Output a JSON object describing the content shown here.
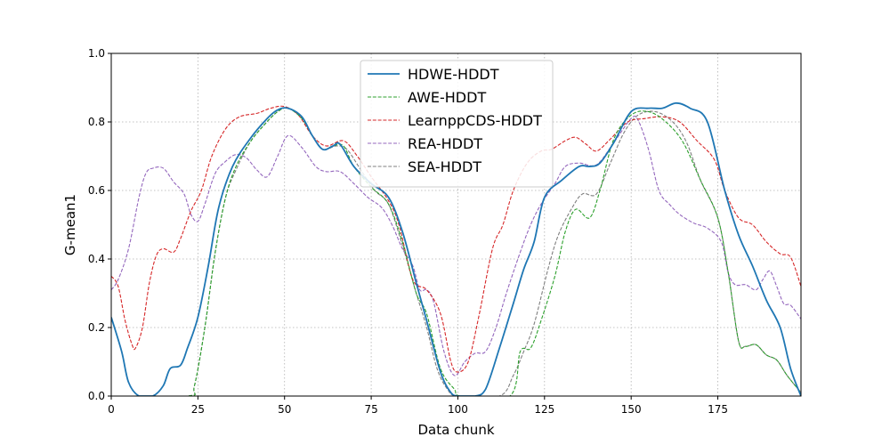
{
  "chart_data": {
    "type": "line",
    "title": "",
    "xlabel": "Data chunk",
    "ylabel": "G-mean1",
    "xlim": [
      0,
      199
    ],
    "ylim": [
      0,
      1
    ],
    "xticks": [
      0,
      25,
      50,
      75,
      100,
      125,
      150,
      175
    ],
    "yticks": [
      0.0,
      0.2,
      0.4,
      0.6,
      0.8,
      1.0
    ],
    "xtick_labels": [
      "0",
      "25",
      "50",
      "75",
      "100",
      "125",
      "150",
      "175"
    ],
    "ytick_labels": [
      "0.0",
      "0.2",
      "0.4",
      "0.6",
      "0.8",
      "1.0"
    ],
    "grid": true,
    "legend_position": "top-center",
    "series": [
      {
        "name": "HDWE-HDDT",
        "color": "#1f77b4",
        "style": "solid",
        "points": [
          [
            0,
            0.23
          ],
          [
            3,
            0.13
          ],
          [
            5,
            0.04
          ],
          [
            8,
            0.0
          ],
          [
            12,
            0.0
          ],
          [
            15,
            0.03
          ],
          [
            17,
            0.08
          ],
          [
            20,
            0.09
          ],
          [
            22,
            0.14
          ],
          [
            25,
            0.23
          ],
          [
            28,
            0.38
          ],
          [
            31,
            0.55
          ],
          [
            35,
            0.67
          ],
          [
            40,
            0.75
          ],
          [
            45,
            0.81
          ],
          [
            48,
            0.835
          ],
          [
            51,
            0.84
          ],
          [
            55,
            0.815
          ],
          [
            58,
            0.76
          ],
          [
            61,
            0.72
          ],
          [
            64,
            0.73
          ],
          [
            66,
            0.735
          ],
          [
            70,
            0.67
          ],
          [
            75,
            0.62
          ],
          [
            80,
            0.58
          ],
          [
            84,
            0.48
          ],
          [
            88,
            0.33
          ],
          [
            91,
            0.22
          ],
          [
            95,
            0.07
          ],
          [
            98,
            0.01
          ],
          [
            100,
            0.0
          ],
          [
            105,
            0.0
          ],
          [
            108,
            0.02
          ],
          [
            112,
            0.14
          ],
          [
            116,
            0.27
          ],
          [
            119,
            0.37
          ],
          [
            122,
            0.45
          ],
          [
            125,
            0.58
          ],
          [
            130,
            0.63
          ],
          [
            135,
            0.67
          ],
          [
            138,
            0.67
          ],
          [
            141,
            0.68
          ],
          [
            145,
            0.74
          ],
          [
            150,
            0.83
          ],
          [
            155,
            0.84
          ],
          [
            159,
            0.84
          ],
          [
            163,
            0.855
          ],
          [
            167,
            0.84
          ],
          [
            172,
            0.8
          ],
          [
            177,
            0.6
          ],
          [
            181,
            0.47
          ],
          [
            185,
            0.38
          ],
          [
            189,
            0.28
          ],
          [
            193,
            0.2
          ],
          [
            196,
            0.08
          ],
          [
            199,
            0.0
          ]
        ]
      },
      {
        "name": "AWE-HDDT",
        "color": "#2ca02c",
        "style": "dashed",
        "points": [
          [
            0,
            0.0
          ],
          [
            22,
            0.0
          ],
          [
            24,
            0.03
          ],
          [
            27,
            0.2
          ],
          [
            30,
            0.42
          ],
          [
            33,
            0.58
          ],
          [
            36,
            0.67
          ],
          [
            40,
            0.74
          ],
          [
            44,
            0.79
          ],
          [
            48,
            0.83
          ],
          [
            51,
            0.84
          ],
          [
            55,
            0.81
          ],
          [
            58,
            0.76
          ],
          [
            61,
            0.72
          ],
          [
            64,
            0.73
          ],
          [
            67,
            0.73
          ],
          [
            70,
            0.67
          ],
          [
            75,
            0.61
          ],
          [
            80,
            0.56
          ],
          [
            84,
            0.45
          ],
          [
            88,
            0.3
          ],
          [
            91,
            0.24
          ],
          [
            95,
            0.08
          ],
          [
            99,
            0.02
          ],
          [
            101,
            0.0
          ],
          [
            115,
            0.0
          ],
          [
            118,
            0.13
          ],
          [
            121,
            0.14
          ],
          [
            124,
            0.22
          ],
          [
            128,
            0.35
          ],
          [
            131,
            0.48
          ],
          [
            134,
            0.545
          ],
          [
            138,
            0.52
          ],
          [
            141,
            0.6
          ],
          [
            145,
            0.75
          ],
          [
            150,
            0.82
          ],
          [
            155,
            0.83
          ],
          [
            160,
            0.8
          ],
          [
            165,
            0.74
          ],
          [
            170,
            0.63
          ],
          [
            175,
            0.52
          ],
          [
            178,
            0.36
          ],
          [
            181,
            0.16
          ],
          [
            183,
            0.145
          ],
          [
            186,
            0.15
          ],
          [
            189,
            0.12
          ],
          [
            192,
            0.105
          ],
          [
            195,
            0.06
          ],
          [
            199,
            0.01
          ]
        ]
      },
      {
        "name": "LearnppCDS-HDDT",
        "color": "#d62728",
        "style": "dashed",
        "points": [
          [
            0,
            0.35
          ],
          [
            2,
            0.32
          ],
          [
            4,
            0.22
          ],
          [
            6,
            0.15
          ],
          [
            7,
            0.14
          ],
          [
            9,
            0.2
          ],
          [
            11,
            0.33
          ],
          [
            13,
            0.41
          ],
          [
            15,
            0.43
          ],
          [
            18,
            0.42
          ],
          [
            20,
            0.46
          ],
          [
            23,
            0.54
          ],
          [
            26,
            0.6
          ],
          [
            29,
            0.7
          ],
          [
            33,
            0.78
          ],
          [
            37,
            0.815
          ],
          [
            42,
            0.825
          ],
          [
            46,
            0.84
          ],
          [
            50,
            0.845
          ],
          [
            54,
            0.82
          ],
          [
            58,
            0.76
          ],
          [
            62,
            0.73
          ],
          [
            67,
            0.745
          ],
          [
            71,
            0.7
          ],
          [
            75,
            0.64
          ],
          [
            80,
            0.57
          ],
          [
            83,
            0.5
          ],
          [
            87,
            0.34
          ],
          [
            91,
            0.31
          ],
          [
            95,
            0.24
          ],
          [
            98,
            0.1
          ],
          [
            100,
            0.07
          ],
          [
            103,
            0.1
          ],
          [
            106,
            0.23
          ],
          [
            110,
            0.43
          ],
          [
            113,
            0.5
          ],
          [
            116,
            0.6
          ],
          [
            120,
            0.68
          ],
          [
            124,
            0.715
          ],
          [
            127,
            0.72
          ],
          [
            131,
            0.745
          ],
          [
            134,
            0.755
          ],
          [
            137,
            0.735
          ],
          [
            140,
            0.715
          ],
          [
            144,
            0.75
          ],
          [
            149,
            0.8
          ],
          [
            154,
            0.81
          ],
          [
            159,
            0.815
          ],
          [
            164,
            0.8
          ],
          [
            169,
            0.745
          ],
          [
            174,
            0.69
          ],
          [
            177,
            0.6
          ],
          [
            181,
            0.52
          ],
          [
            185,
            0.5
          ],
          [
            189,
            0.45
          ],
          [
            193,
            0.415
          ],
          [
            196,
            0.405
          ],
          [
            199,
            0.32
          ]
        ]
      },
      {
        "name": "REA-HDDT",
        "color": "#9467bd",
        "style": "dashed",
        "points": [
          [
            0,
            0.31
          ],
          [
            2,
            0.34
          ],
          [
            5,
            0.43
          ],
          [
            8,
            0.58
          ],
          [
            10,
            0.65
          ],
          [
            12,
            0.665
          ],
          [
            15,
            0.665
          ],
          [
            18,
            0.625
          ],
          [
            21,
            0.59
          ],
          [
            23,
            0.53
          ],
          [
            25,
            0.51
          ],
          [
            27,
            0.56
          ],
          [
            30,
            0.65
          ],
          [
            33,
            0.685
          ],
          [
            36,
            0.705
          ],
          [
            39,
            0.695
          ],
          [
            42,
            0.66
          ],
          [
            45,
            0.64
          ],
          [
            48,
            0.7
          ],
          [
            51,
            0.76
          ],
          [
            55,
            0.725
          ],
          [
            59,
            0.67
          ],
          [
            62,
            0.655
          ],
          [
            66,
            0.655
          ],
          [
            70,
            0.62
          ],
          [
            74,
            0.58
          ],
          [
            78,
            0.55
          ],
          [
            81,
            0.5
          ],
          [
            84,
            0.43
          ],
          [
            87,
            0.38
          ],
          [
            89,
            0.31
          ],
          [
            91,
            0.31
          ],
          [
            93,
            0.275
          ],
          [
            96,
            0.13
          ],
          [
            99,
            0.06
          ],
          [
            102,
            0.1
          ],
          [
            105,
            0.125
          ],
          [
            108,
            0.13
          ],
          [
            111,
            0.2
          ],
          [
            114,
            0.3
          ],
          [
            118,
            0.42
          ],
          [
            121,
            0.5
          ],
          [
            124,
            0.56
          ],
          [
            128,
            0.62
          ],
          [
            131,
            0.67
          ],
          [
            135,
            0.68
          ],
          [
            140,
            0.675
          ],
          [
            145,
            0.74
          ],
          [
            150,
            0.81
          ],
          [
            152,
            0.805
          ],
          [
            155,
            0.72
          ],
          [
            158,
            0.6
          ],
          [
            161,
            0.56
          ],
          [
            164,
            0.53
          ],
          [
            168,
            0.505
          ],
          [
            172,
            0.49
          ],
          [
            176,
            0.45
          ],
          [
            178,
            0.36
          ],
          [
            180,
            0.325
          ],
          [
            183,
            0.325
          ],
          [
            186,
            0.31
          ],
          [
            188,
            0.34
          ],
          [
            190,
            0.365
          ],
          [
            192,
            0.32
          ],
          [
            194,
            0.27
          ],
          [
            196,
            0.265
          ],
          [
            199,
            0.225
          ]
        ]
      },
      {
        "name": "SEA-HDDT",
        "color": "#7f7f7f",
        "style": "dashed",
        "points": [
          [
            0,
            0.0
          ],
          [
            22,
            0.0
          ],
          [
            24,
            0.03
          ],
          [
            27,
            0.2
          ],
          [
            30,
            0.42
          ],
          [
            33,
            0.58
          ],
          [
            36,
            0.66
          ],
          [
            40,
            0.74
          ],
          [
            44,
            0.79
          ],
          [
            48,
            0.83
          ],
          [
            51,
            0.84
          ],
          [
            55,
            0.81
          ],
          [
            58,
            0.76
          ],
          [
            61,
            0.72
          ],
          [
            65,
            0.73
          ],
          [
            68,
            0.72
          ],
          [
            72,
            0.66
          ],
          [
            76,
            0.6
          ],
          [
            80,
            0.56
          ],
          [
            84,
            0.44
          ],
          [
            88,
            0.3
          ],
          [
            91,
            0.2
          ],
          [
            94,
            0.08
          ],
          [
            97,
            0.02
          ],
          [
            100,
            0.0
          ],
          [
            112,
            0.0
          ],
          [
            116,
            0.06
          ],
          [
            119,
            0.13
          ],
          [
            122,
            0.21
          ],
          [
            126,
            0.37
          ],
          [
            129,
            0.47
          ],
          [
            133,
            0.55
          ],
          [
            136,
            0.59
          ],
          [
            140,
            0.59
          ],
          [
            144,
            0.68
          ],
          [
            148,
            0.77
          ],
          [
            152,
            0.82
          ],
          [
            157,
            0.83
          ],
          [
            162,
            0.8
          ],
          [
            166,
            0.74
          ],
          [
            170,
            0.63
          ],
          [
            175,
            0.52
          ],
          [
            178,
            0.36
          ],
          [
            181,
            0.16
          ],
          [
            183,
            0.145
          ],
          [
            186,
            0.15
          ],
          [
            189,
            0.12
          ],
          [
            192,
            0.105
          ],
          [
            195,
            0.06
          ],
          [
            199,
            0.01
          ]
        ]
      }
    ]
  }
}
